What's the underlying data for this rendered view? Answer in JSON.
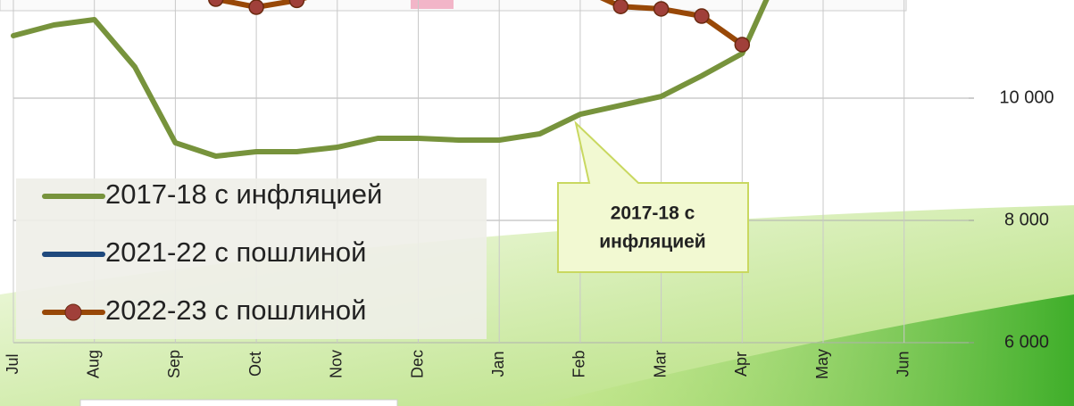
{
  "chart_data": {
    "type": "line",
    "categories": [
      "Jul",
      null,
      "Aug",
      null,
      "Sep",
      null,
      "Oct",
      null,
      "Nov",
      null,
      "Dec",
      null,
      "Jan",
      null,
      "Feb",
      null,
      "Mar",
      null,
      "Apr",
      null,
      "May",
      null,
      "Jun",
      null
    ],
    "series": [
      {
        "name": "2017-18 с инфляцией",
        "color": "#77933c",
        "values": [
          11022,
          11197,
          11285,
          10511,
          9270,
          9051,
          9124,
          9124,
          9197,
          9343,
          9343,
          9314,
          9314,
          9416,
          9737,
          9883,
          10029,
          10365,
          10730,
          12200,
          null,
          null,
          null,
          null
        ]
      },
      {
        "name": "2021-22 с пошлиной",
        "color": "#1f497d",
        "values": [
          null,
          null,
          null,
          null,
          null,
          null,
          null,
          null,
          null,
          null,
          null,
          null,
          null,
          null,
          null,
          null,
          null,
          null,
          null,
          null,
          null,
          null,
          null,
          null
        ]
      },
      {
        "name": "2022-23 с пошлиной",
        "color": "#984807",
        "marker_color": "#a0403a",
        "values": [
          null,
          null,
          null,
          null,
          11800,
          11620,
          11489,
          11600,
          11800,
          11800,
          11800,
          11800,
          11800,
          11800,
          11800,
          11500,
          11460,
          11343,
          10876,
          null,
          null,
          null,
          null,
          null
        ]
      }
    ],
    "ylim": [
      6000,
      12000
    ],
    "yticks": [
      {
        "value": 6000,
        "label": "6 000"
      },
      {
        "value": 8000,
        "label": "8 000"
      },
      {
        "value": 10000,
        "label": "10 000"
      }
    ],
    "y_axis_side": "right",
    "grid": true,
    "legend": "lower-left",
    "annotation": [
      "2017-18  с",
      "инфляцией"
    ]
  }
}
